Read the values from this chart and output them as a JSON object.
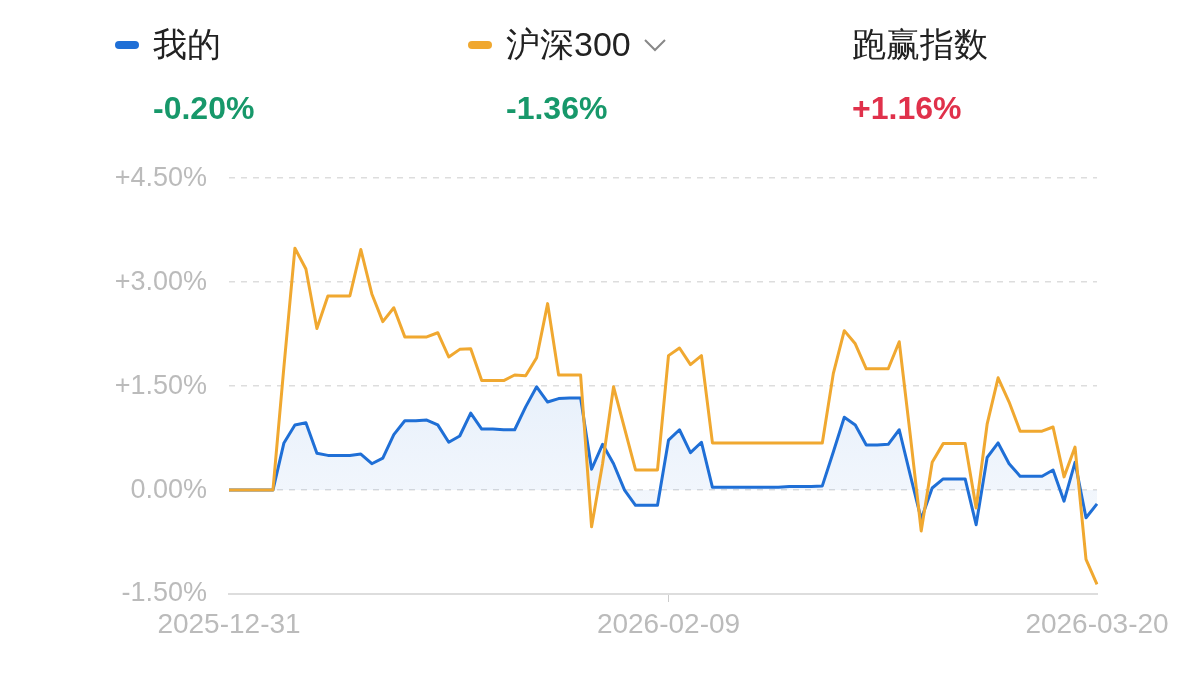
{
  "chart_data": {
    "type": "line",
    "categories": [
      "2025-12-31",
      null,
      null,
      null,
      null,
      null,
      null,
      null,
      null,
      null,
      null,
      null,
      null,
      null,
      null,
      null,
      null,
      null,
      null,
      null,
      null,
      null,
      null,
      null,
      null,
      null,
      null,
      null,
      null,
      null,
      null,
      null,
      null,
      null,
      null,
      null,
      null,
      null,
      null,
      null,
      "2026-02-09",
      null,
      null,
      null,
      null,
      null,
      null,
      null,
      null,
      null,
      null,
      null,
      null,
      null,
      null,
      null,
      null,
      null,
      null,
      null,
      null,
      null,
      null,
      null,
      null,
      null,
      null,
      null,
      null,
      null,
      null,
      null,
      null,
      null,
      null,
      null,
      null,
      null,
      null,
      "2026-03-20"
    ],
    "series": [
      {
        "name": "我的",
        "type": "area",
        "color": "#1f6fd6",
        "values": [
          0,
          0,
          0,
          0,
          0,
          0.68,
          0.94,
          0.97,
          0.53,
          0.5,
          0.5,
          0.5,
          0.52,
          0.38,
          0.46,
          0.8,
          1.0,
          1.0,
          1.01,
          0.94,
          0.69,
          0.78,
          1.11,
          0.88,
          0.88,
          0.87,
          0.87,
          1.2,
          1.49,
          1.27,
          1.32,
          1.33,
          1.33,
          0.3,
          0.66,
          0.38,
          0.0,
          -0.22,
          -0.22,
          -0.22,
          0.72,
          0.87,
          0.54,
          0.69,
          0.04,
          0.04,
          0.04,
          0.04,
          0.04,
          0.04,
          0.04,
          0.05,
          0.05,
          0.05,
          0.06,
          0.55,
          1.05,
          0.94,
          0.65,
          0.65,
          0.66,
          0.87,
          0.22,
          -0.42,
          0.03,
          0.16,
          0.16,
          0.16,
          -0.5,
          0.47,
          0.68,
          0.38,
          0.2,
          0.2,
          0.2,
          0.29,
          -0.16,
          0.4,
          -0.4,
          -0.2
        ]
      },
      {
        "name": "沪深300",
        "type": "line",
        "color": "#f0a830",
        "values": [
          0,
          0,
          0,
          0,
          0,
          1.78,
          3.49,
          3.19,
          2.33,
          2.8,
          2.8,
          2.8,
          3.47,
          2.83,
          2.43,
          2.63,
          2.21,
          2.21,
          2.21,
          2.27,
          1.92,
          2.03,
          2.04,
          1.58,
          1.58,
          1.58,
          1.66,
          1.65,
          1.91,
          2.69,
          1.66,
          1.66,
          1.66,
          -0.53,
          0.38,
          1.49,
          0.89,
          0.29,
          0.29,
          0.29,
          1.94,
          2.05,
          1.81,
          1.94,
          0.68,
          0.68,
          0.68,
          0.68,
          0.68,
          0.68,
          0.68,
          0.68,
          0.68,
          0.68,
          0.68,
          1.68,
          2.3,
          2.11,
          1.75,
          1.75,
          1.75,
          2.14,
          0.8,
          -0.59,
          0.4,
          0.67,
          0.67,
          0.67,
          -0.26,
          0.95,
          1.62,
          1.27,
          0.85,
          0.85,
          0.85,
          0.91,
          0.19,
          0.62,
          -1.0,
          -1.36
        ]
      }
    ],
    "ylim": [
      -1.5,
      4.5
    ],
    "yticks": [
      {
        "value": -1.5,
        "label": "-1.50%"
      },
      {
        "value": 0,
        "label": "0.00%"
      },
      {
        "value": 1.5,
        "label": "+1.50%"
      },
      {
        "value": 3,
        "label": "+3.00%"
      },
      {
        "value": 4.5,
        "label": "+4.50%"
      }
    ],
    "annotations": [
      "-0.20%",
      "-1.36%",
      "跑赢指数",
      "+1.16%"
    ],
    "grid": "y",
    "legend": "top",
    "marker": "none",
    "line_style": "solid"
  }
}
